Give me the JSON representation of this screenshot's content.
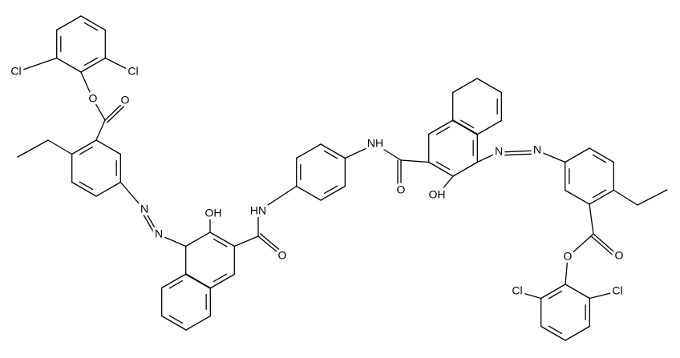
{
  "labels": [
    "Cl",
    "Cl",
    "O",
    "O",
    "N",
    "N",
    "OH",
    "HN",
    "O",
    "NH",
    "O",
    "OH",
    "N",
    "N",
    "O",
    "O",
    "Cl",
    "Cl"
  ]
}
